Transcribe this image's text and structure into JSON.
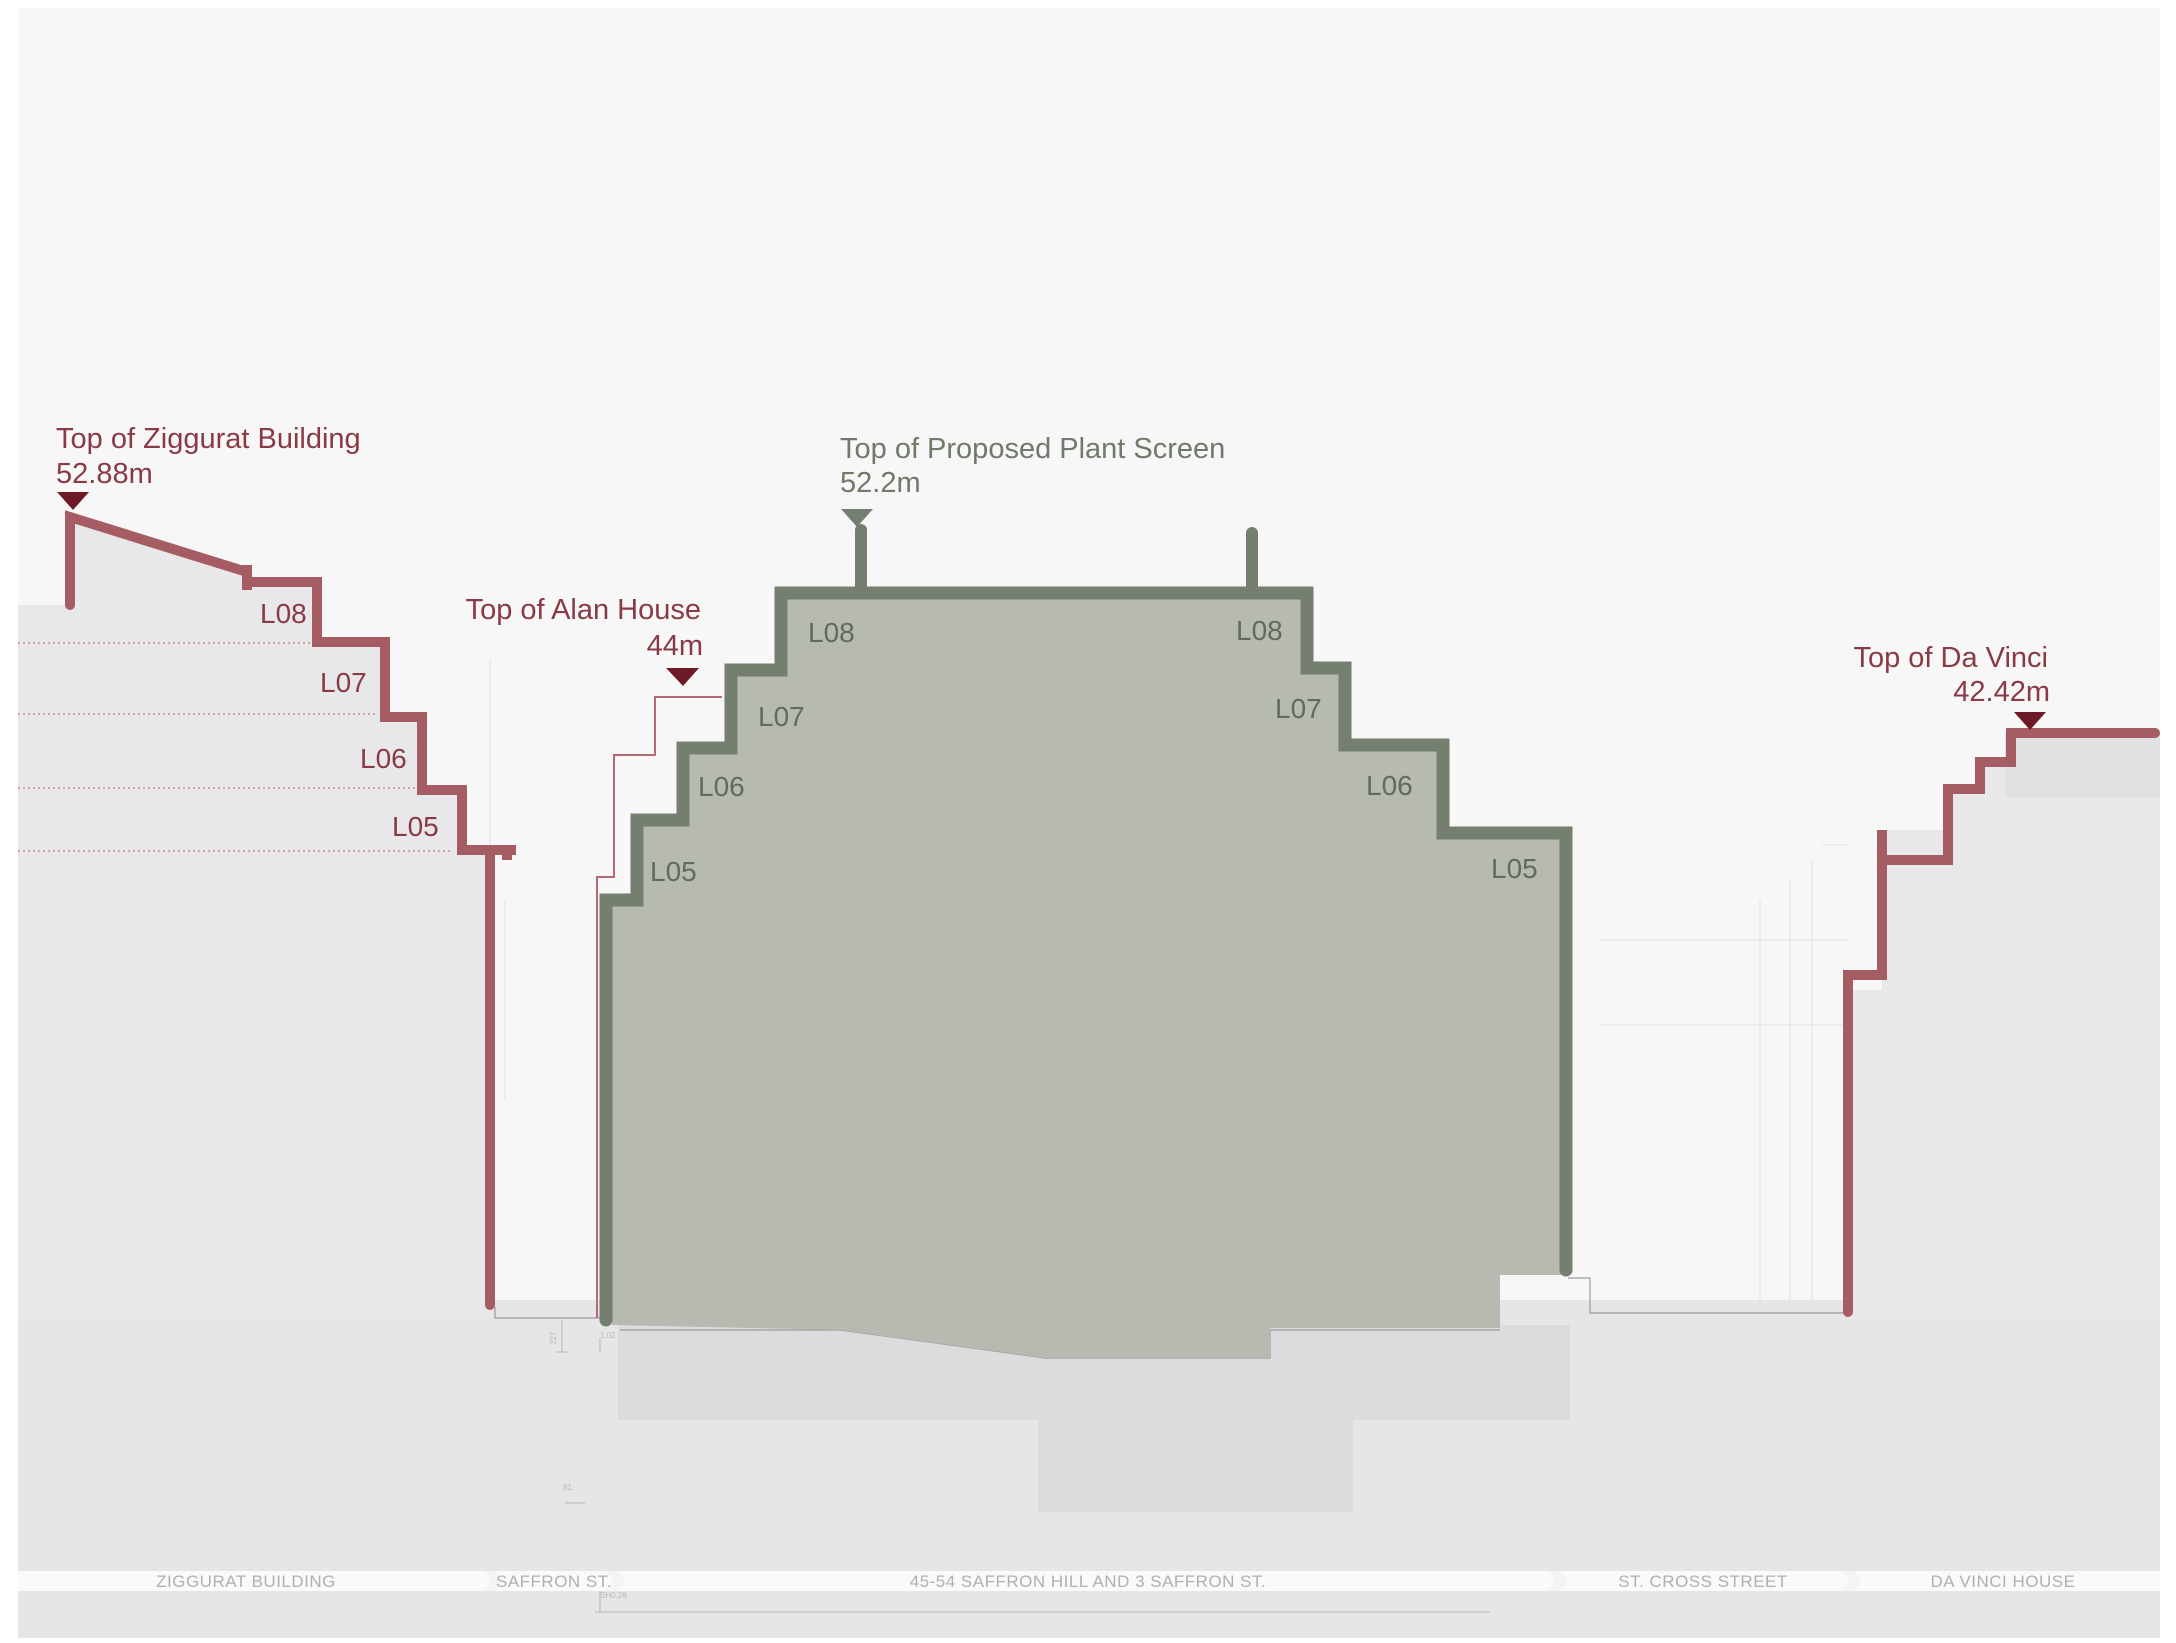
{
  "colors": {
    "background": "#f7f7f7",
    "existing_building_outline": "#a55c63",
    "existing_marker": "#6e1a26",
    "proposed_outline": "#747f70",
    "proposed_fill": "#b7bab0",
    "ground_fill": "#e6e6e8"
  },
  "annotations": {
    "ziggurat": {
      "title": "Top of Ziggurat Building",
      "height": "52.88m"
    },
    "plant_screen": {
      "title": "Top of Proposed Plant Screen",
      "height": "52.2m"
    },
    "alan_house": {
      "title": "Top of Alan House",
      "height": "44m"
    },
    "da_vinci": {
      "title": "Top of Da Vinci",
      "height": "42.42m"
    }
  },
  "levels": {
    "ziggurat": [
      "L08",
      "L07",
      "L06",
      "L05"
    ],
    "proposed_left": [
      "L08",
      "L07",
      "L06",
      "L05"
    ],
    "proposed_right": [
      "L08",
      "L07",
      "L06",
      "L05"
    ]
  },
  "street_strip": {
    "segments": [
      "ZIGGURAT BUILDING",
      "SAFFRON ST.",
      "45-54 SAFFRON HILL AND 3 SAFFRON ST.",
      "ST. CROSS STREET",
      "DA VINCI HOUSE"
    ]
  },
  "small_dims": {
    "d1": "227",
    "d2": "1.02",
    "d3": "81",
    "d4": "SH0.28"
  }
}
